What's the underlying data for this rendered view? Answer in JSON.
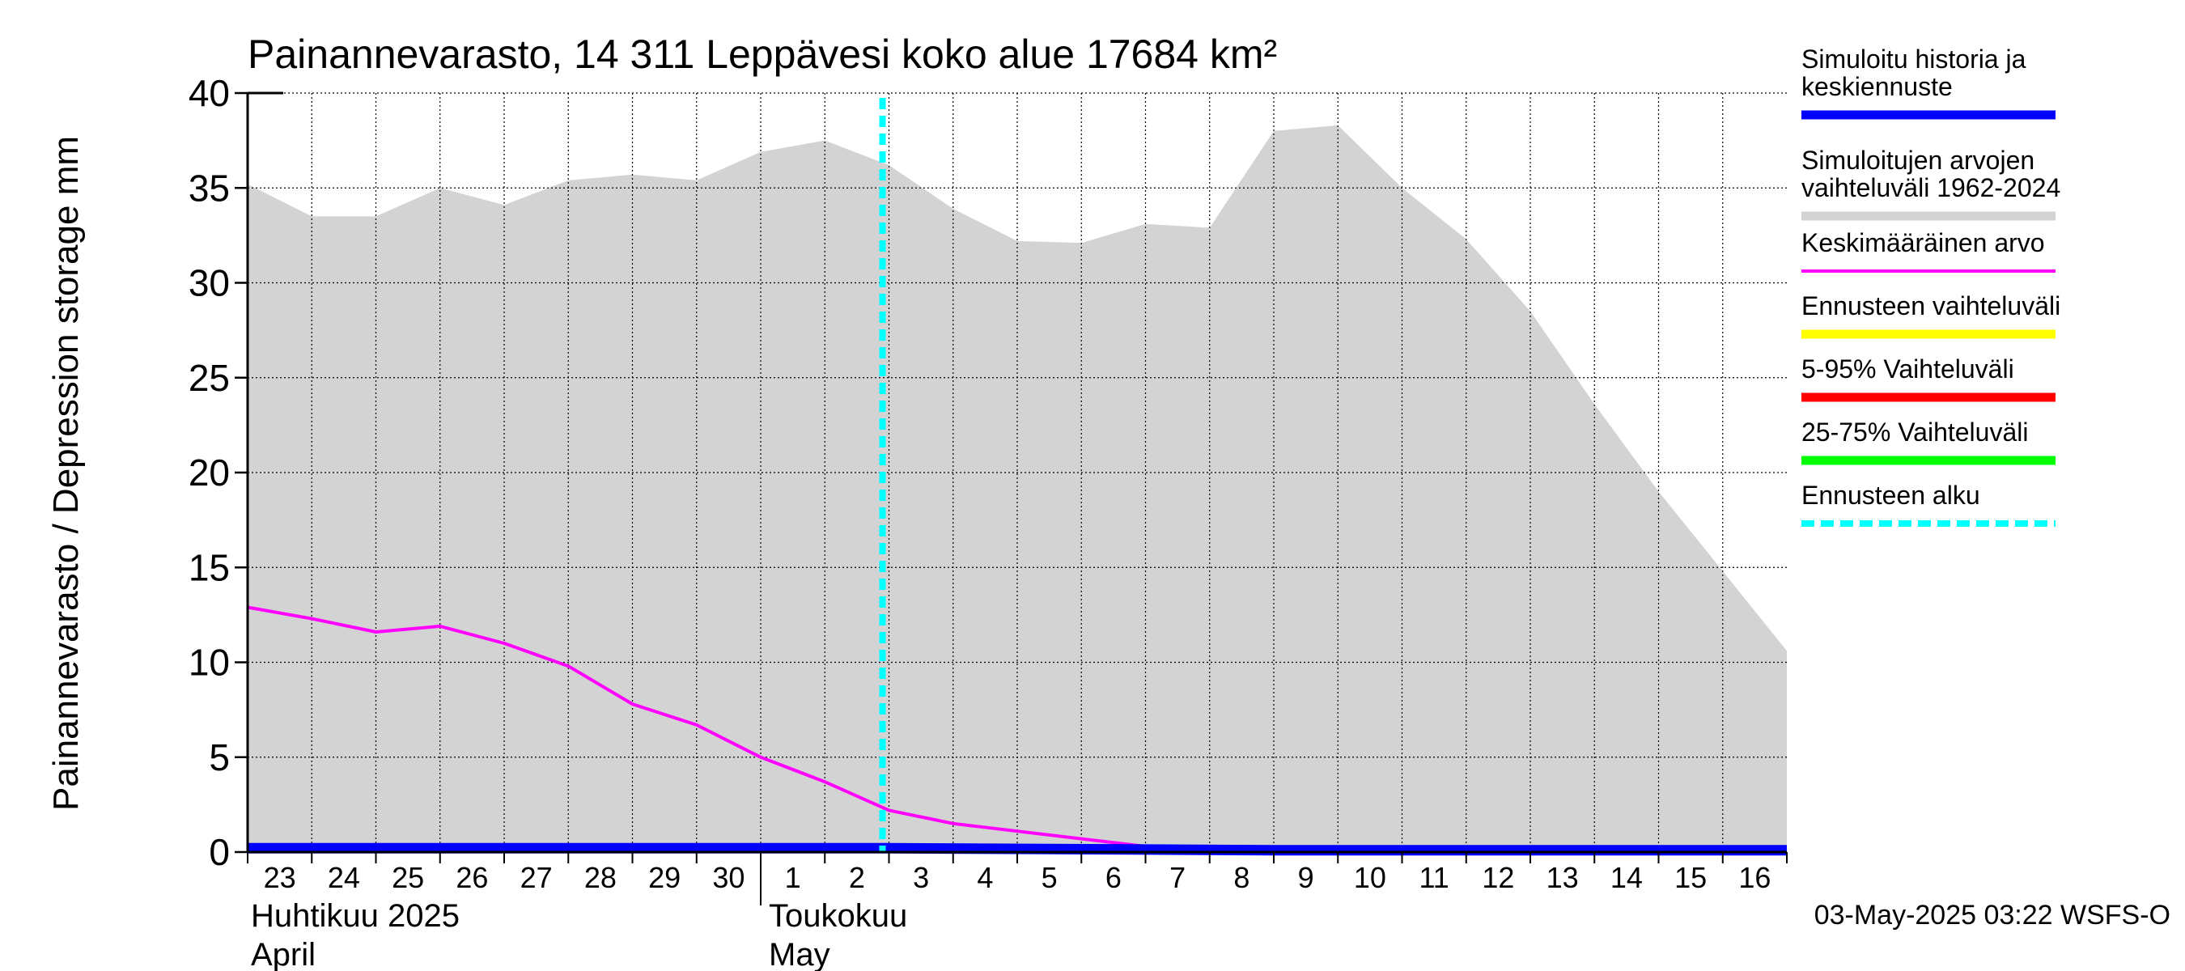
{
  "chart_data": {
    "type": "area",
    "title": "Painannevarasto, 14 311 Leppävesi koko alue 17684 km²",
    "ylabel": "Painannevarasto / Depression storage    mm",
    "ylim": [
      0,
      40
    ],
    "yticks": [
      0,
      5,
      10,
      15,
      20,
      25,
      30,
      35,
      40
    ],
    "grid": true,
    "legend_position": "right",
    "x_domain": [
      "2025-04-23",
      "2025-05-17"
    ],
    "x_tick_labels": [
      "23",
      "24",
      "25",
      "26",
      "27",
      "28",
      "29",
      "30",
      "1",
      "2",
      "3",
      "4",
      "5",
      "6",
      "7",
      "8",
      "9",
      "10",
      "11",
      "12",
      "13",
      "14",
      "15",
      "16"
    ],
    "month_labels": [
      {
        "fi": "Huhtikuu  2025",
        "en": "April"
      },
      {
        "fi": "Toukokuu",
        "en": "May"
      }
    ],
    "forecast_start": "2025-05-03",
    "series": [
      {
        "name": "Simuloitujen arvojen vaihteluväli 1962-2024",
        "kind": "range",
        "color": "#d3d3d3",
        "x": [
          "2025-04-23",
          "2025-04-24",
          "2025-04-25",
          "2025-04-26",
          "2025-04-27",
          "2025-04-28",
          "2025-04-29",
          "2025-04-30",
          "2025-05-01",
          "2025-05-02",
          "2025-05-03",
          "2025-05-04",
          "2025-05-05",
          "2025-05-06",
          "2025-05-07",
          "2025-05-08",
          "2025-05-09",
          "2025-05-10",
          "2025-05-11",
          "2025-05-12",
          "2025-05-13",
          "2025-05-14",
          "2025-05-15",
          "2025-05-16",
          "2025-05-17"
        ],
        "upper": [
          35.2,
          33.5,
          33.5,
          35.0,
          34.1,
          35.4,
          35.7,
          35.4,
          36.9,
          37.5,
          36.2,
          33.9,
          32.2,
          32.1,
          33.1,
          32.9,
          38.0,
          38.3,
          35.0,
          32.3,
          28.5,
          23.6,
          19.0,
          14.8,
          10.6
        ],
        "lower": [
          0,
          0,
          0,
          0,
          0,
          0,
          0,
          0,
          0,
          0,
          0,
          0,
          0,
          0,
          0,
          0,
          0,
          0,
          0,
          0,
          0,
          0,
          0,
          0,
          0
        ]
      },
      {
        "name": "Keskimääräinen arvo",
        "kind": "line",
        "color": "#ff00ff",
        "x": [
          "2025-04-23",
          "2025-04-24",
          "2025-04-25",
          "2025-04-26",
          "2025-04-27",
          "2025-04-28",
          "2025-04-29",
          "2025-04-30",
          "2025-05-01",
          "2025-05-02",
          "2025-05-03",
          "2025-05-04",
          "2025-05-05",
          "2025-05-06",
          "2025-05-07",
          "2025-05-08",
          "2025-05-09",
          "2025-05-10",
          "2025-05-11",
          "2025-05-12",
          "2025-05-13",
          "2025-05-14",
          "2025-05-15",
          "2025-05-16",
          "2025-05-17"
        ],
        "values": [
          12.9,
          12.3,
          11.6,
          11.9,
          11.0,
          9.8,
          7.8,
          6.7,
          5.0,
          3.7,
          2.2,
          1.5,
          1.1,
          0.7,
          0.3,
          0.1,
          0.0,
          0.0,
          0.0,
          0.0,
          0.0,
          0.0,
          0.0,
          0.0,
          0.0
        ]
      },
      {
        "name": "Simuloitu historia ja keskiennuste",
        "kind": "line",
        "color": "#0000ff",
        "x": [
          "2025-04-23",
          "2025-05-03",
          "2025-05-09",
          "2025-05-17"
        ],
        "values": [
          0.2,
          0.2,
          0.1,
          0.1
        ]
      },
      {
        "name": "Ennusteen vaihteluväli",
        "kind": "legend-only",
        "color": "#ffff00"
      },
      {
        "name": "5-95% Vaihteluväli",
        "kind": "legend-only",
        "color": "#ff0000"
      },
      {
        "name": "25-75% Vaihteluväli",
        "kind": "legend-only",
        "color": "#00ff00"
      },
      {
        "name": "Ennusteen alku",
        "kind": "forecast-marker",
        "color": "#00ffff"
      }
    ],
    "legend": [
      {
        "lines": [
          "Simuloitu historia ja",
          "keskiennuste"
        ],
        "color": "#0000ff",
        "style": "thick"
      },
      {
        "lines": [
          "Simuloitujen arvojen",
          "vaihteluväli 1962-2024"
        ],
        "color": "#d3d3d3",
        "style": "thick"
      },
      {
        "lines": [
          "Keskimääräinen arvo"
        ],
        "color": "#ff00ff",
        "style": "thin"
      },
      {
        "lines": [
          "Ennusteen vaihteluväli"
        ],
        "color": "#ffff00",
        "style": "thick"
      },
      {
        "lines": [
          "5-95% Vaihteluväli"
        ],
        "color": "#ff0000",
        "style": "thick"
      },
      {
        "lines": [
          "25-75% Vaihteluväli"
        ],
        "color": "#00ff00",
        "style": "thick"
      },
      {
        "lines": [
          "Ennusteen alku"
        ],
        "color": "#00ffff",
        "style": "dashed"
      }
    ],
    "footer": "03-May-2025 03:22 WSFS-O"
  }
}
